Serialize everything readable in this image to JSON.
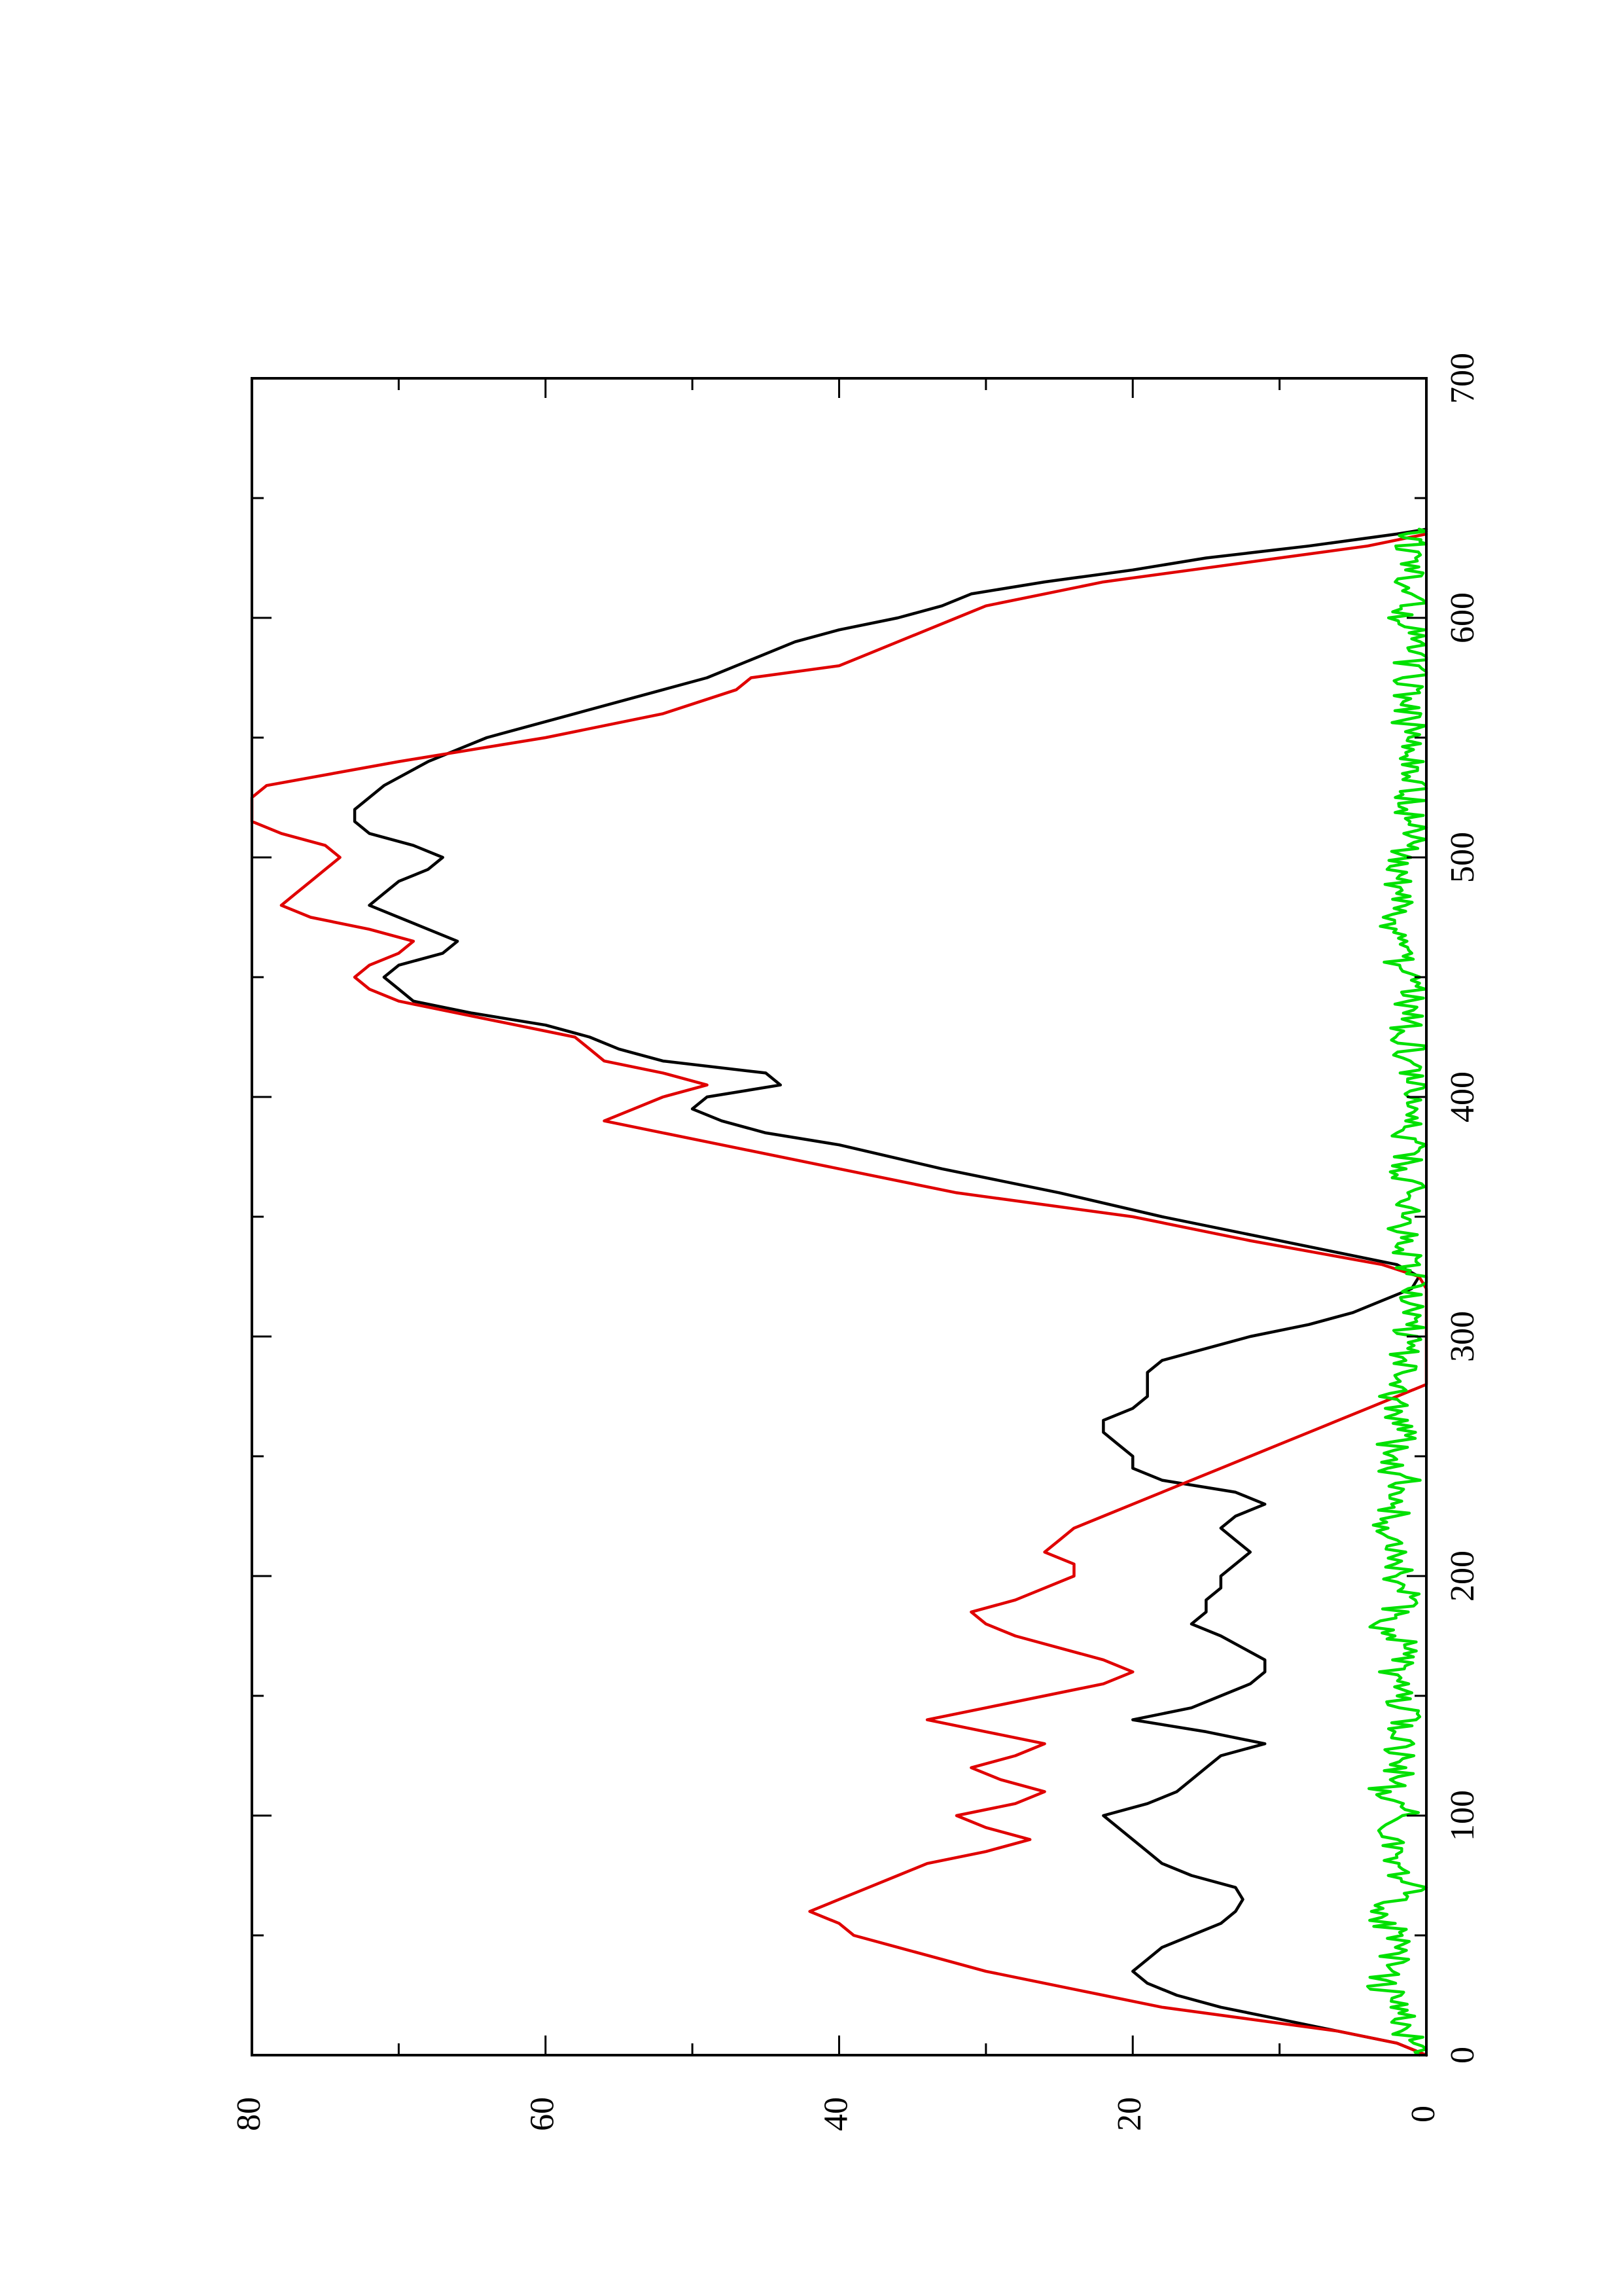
{
  "chart_data": {
    "type": "line",
    "orientation": "rotated-90-ccw",
    "title": "",
    "xlabel": "",
    "ylabel": "",
    "xlim": [
      0,
      700
    ],
    "ylim": [
      0,
      80
    ],
    "x_ticks": [
      0,
      100,
      200,
      300,
      400,
      500,
      600,
      700
    ],
    "y_ticks": [
      0,
      20,
      40,
      60,
      80
    ],
    "grid": false,
    "legend": "none",
    "series": [
      {
        "color": "#000000",
        "points": [
          [
            0,
            0
          ],
          [
            5,
            2
          ],
          [
            10,
            6
          ],
          [
            15,
            10
          ],
          [
            20,
            14
          ],
          [
            25,
            17
          ],
          [
            30,
            19
          ],
          [
            35,
            20
          ],
          [
            40,
            19
          ],
          [
            45,
            18
          ],
          [
            50,
            16
          ],
          [
            55,
            14
          ],
          [
            60,
            13
          ],
          [
            65,
            12.5
          ],
          [
            70,
            13
          ],
          [
            75,
            16
          ],
          [
            80,
            18
          ],
          [
            85,
            19
          ],
          [
            90,
            20
          ],
          [
            95,
            21
          ],
          [
            100,
            22
          ],
          [
            105,
            19
          ],
          [
            110,
            17
          ],
          [
            115,
            16
          ],
          [
            120,
            15
          ],
          [
            125,
            14
          ],
          [
            130,
            11
          ],
          [
            135,
            15
          ],
          [
            140,
            20
          ],
          [
            145,
            16
          ],
          [
            150,
            14
          ],
          [
            155,
            12
          ],
          [
            160,
            11
          ],
          [
            165,
            11
          ],
          [
            170,
            12.5
          ],
          [
            175,
            14
          ],
          [
            180,
            16
          ],
          [
            185,
            15
          ],
          [
            190,
            15
          ],
          [
            195,
            14
          ],
          [
            200,
            14
          ],
          [
            205,
            13
          ],
          [
            210,
            12
          ],
          [
            215,
            13
          ],
          [
            220,
            14
          ],
          [
            225,
            13
          ],
          [
            230,
            11
          ],
          [
            235,
            13
          ],
          [
            240,
            18
          ],
          [
            245,
            20
          ],
          [
            250,
            20
          ],
          [
            255,
            21
          ],
          [
            260,
            22
          ],
          [
            265,
            22
          ],
          [
            270,
            20
          ],
          [
            275,
            19
          ],
          [
            280,
            19
          ],
          [
            285,
            19
          ],
          [
            290,
            18
          ],
          [
            295,
            15
          ],
          [
            300,
            12
          ],
          [
            305,
            8
          ],
          [
            310,
            5
          ],
          [
            315,
            3
          ],
          [
            320,
            1
          ],
          [
            325,
            0.5
          ],
          [
            330,
            2
          ],
          [
            340,
            10
          ],
          [
            350,
            18
          ],
          [
            360,
            25
          ],
          [
            370,
            33
          ],
          [
            380,
            40
          ],
          [
            385,
            45
          ],
          [
            390,
            48
          ],
          [
            395,
            50
          ],
          [
            400,
            49
          ],
          [
            405,
            44
          ],
          [
            410,
            45
          ],
          [
            415,
            52
          ],
          [
            420,
            55
          ],
          [
            425,
            57
          ],
          [
            430,
            60
          ],
          [
            435,
            65
          ],
          [
            440,
            69
          ],
          [
            445,
            70
          ],
          [
            450,
            71
          ],
          [
            455,
            70
          ],
          [
            460,
            67
          ],
          [
            465,
            66
          ],
          [
            470,
            68
          ],
          [
            475,
            70
          ],
          [
            480,
            72
          ],
          [
            485,
            71
          ],
          [
            490,
            70
          ],
          [
            495,
            68
          ],
          [
            500,
            67
          ],
          [
            505,
            69
          ],
          [
            510,
            72
          ],
          [
            515,
            73
          ],
          [
            520,
            73
          ],
          [
            525,
            72
          ],
          [
            530,
            71
          ],
          [
            540,
            68
          ],
          [
            550,
            64
          ],
          [
            560,
            58
          ],
          [
            570,
            52
          ],
          [
            575,
            49
          ],
          [
            580,
            47
          ],
          [
            585,
            45
          ],
          [
            590,
            43
          ],
          [
            595,
            40
          ],
          [
            600,
            36
          ],
          [
            605,
            33
          ],
          [
            610,
            31
          ],
          [
            615,
            26
          ],
          [
            620,
            20
          ],
          [
            625,
            15
          ],
          [
            630,
            8
          ],
          [
            635,
            2
          ],
          [
            637,
            0
          ]
        ]
      },
      {
        "color": "#e00000",
        "points": [
          [
            0,
            0
          ],
          [
            5,
            2
          ],
          [
            10,
            6
          ],
          [
            15,
            12
          ],
          [
            20,
            18
          ],
          [
            25,
            22
          ],
          [
            30,
            26
          ],
          [
            35,
            30
          ],
          [
            40,
            33
          ],
          [
            45,
            36
          ],
          [
            50,
            39
          ],
          [
            55,
            40
          ],
          [
            60,
            42
          ],
          [
            65,
            40
          ],
          [
            70,
            38
          ],
          [
            75,
            36
          ],
          [
            80,
            34
          ],
          [
            85,
            30
          ],
          [
            90,
            27
          ],
          [
            95,
            30
          ],
          [
            100,
            32
          ],
          [
            105,
            28
          ],
          [
            110,
            26
          ],
          [
            115,
            29
          ],
          [
            120,
            31
          ],
          [
            125,
            28
          ],
          [
            130,
            26
          ],
          [
            135,
            30
          ],
          [
            140,
            34
          ],
          [
            145,
            30
          ],
          [
            150,
            26
          ],
          [
            155,
            22
          ],
          [
            160,
            20
          ],
          [
            165,
            22
          ],
          [
            170,
            25
          ],
          [
            175,
            28
          ],
          [
            180,
            30
          ],
          [
            185,
            31
          ],
          [
            190,
            28
          ],
          [
            195,
            26
          ],
          [
            200,
            24
          ],
          [
            205,
            24
          ],
          [
            210,
            26
          ],
          [
            215,
            25
          ],
          [
            220,
            24
          ],
          [
            225,
            22
          ],
          [
            230,
            20
          ],
          [
            235,
            18
          ],
          [
            240,
            16
          ],
          [
            245,
            14
          ],
          [
            250,
            12
          ],
          [
            255,
            10
          ],
          [
            260,
            8
          ],
          [
            265,
            6
          ],
          [
            270,
            4
          ],
          [
            275,
            2
          ],
          [
            280,
            0
          ],
          [
            285,
            0
          ],
          [
            320,
            0
          ],
          [
            325,
            0.5
          ],
          [
            330,
            3
          ],
          [
            340,
            12
          ],
          [
            350,
            20
          ],
          [
            360,
            32
          ],
          [
            370,
            40
          ],
          [
            380,
            48
          ],
          [
            385,
            52
          ],
          [
            390,
            56
          ],
          [
            395,
            54
          ],
          [
            400,
            52
          ],
          [
            405,
            49
          ],
          [
            410,
            52
          ],
          [
            415,
            56
          ],
          [
            420,
            57
          ],
          [
            425,
            58
          ],
          [
            430,
            62
          ],
          [
            435,
            66
          ],
          [
            440,
            70
          ],
          [
            445,
            72
          ],
          [
            450,
            73
          ],
          [
            455,
            72
          ],
          [
            460,
            70
          ],
          [
            465,
            69
          ],
          [
            470,
            72
          ],
          [
            475,
            76
          ],
          [
            480,
            78
          ],
          [
            485,
            77
          ],
          [
            490,
            76
          ],
          [
            495,
            75
          ],
          [
            500,
            74
          ],
          [
            505,
            75
          ],
          [
            510,
            78
          ],
          [
            515,
            80
          ],
          [
            520,
            80
          ],
          [
            525,
            80
          ],
          [
            530,
            79
          ],
          [
            540,
            70
          ],
          [
            550,
            60
          ],
          [
            560,
            52
          ],
          [
            570,
            47
          ],
          [
            575,
            46
          ],
          [
            580,
            40
          ],
          [
            585,
            38
          ],
          [
            590,
            36
          ],
          [
            595,
            34
          ],
          [
            600,
            32
          ],
          [
            605,
            30
          ],
          [
            610,
            26
          ],
          [
            615,
            22
          ],
          [
            620,
            16
          ],
          [
            625,
            10
          ],
          [
            630,
            4
          ],
          [
            635,
            0
          ]
        ]
      },
      {
        "color": "#00e000",
        "noise_amplitude": 1.2,
        "points": [
          [
            0,
            0.5
          ],
          [
            10,
            1.5
          ],
          [
            20,
            2
          ],
          [
            30,
            3
          ],
          [
            40,
            2
          ],
          [
            50,
            2
          ],
          [
            60,
            3.5
          ],
          [
            70,
            1
          ],
          [
            80,
            2
          ],
          [
            90,
            2.5
          ],
          [
            100,
            1.5
          ],
          [
            110,
            3
          ],
          [
            120,
            1.5
          ],
          [
            130,
            2
          ],
          [
            140,
            1.5
          ],
          [
            150,
            2
          ],
          [
            160,
            2.5
          ],
          [
            170,
            1.5
          ],
          [
            180,
            3
          ],
          [
            190,
            1.5
          ],
          [
            200,
            2
          ],
          [
            210,
            1.5
          ],
          [
            220,
            2.5
          ],
          [
            230,
            2
          ],
          [
            240,
            1.5
          ],
          [
            250,
            3
          ],
          [
            260,
            1.5
          ],
          [
            270,
            2
          ],
          [
            280,
            2.5
          ],
          [
            290,
            1.5
          ],
          [
            300,
            1.5
          ],
          [
            310,
            1
          ],
          [
            320,
            0.5
          ],
          [
            330,
            1
          ],
          [
            340,
            1.5
          ],
          [
            350,
            1.5
          ],
          [
            360,
            1
          ],
          [
            370,
            1.5
          ],
          [
            380,
            1
          ],
          [
            390,
            1.5
          ],
          [
            400,
            1
          ],
          [
            410,
            1.5
          ],
          [
            420,
            1
          ],
          [
            430,
            1.5
          ],
          [
            440,
            1
          ],
          [
            450,
            1.5
          ],
          [
            460,
            2
          ],
          [
            470,
            2.5
          ],
          [
            480,
            1.5
          ],
          [
            490,
            2
          ],
          [
            500,
            2
          ],
          [
            510,
            1
          ],
          [
            520,
            1.5
          ],
          [
            530,
            0.5
          ],
          [
            540,
            1
          ],
          [
            550,
            1.5
          ],
          [
            560,
            1
          ],
          [
            570,
            1.5
          ],
          [
            580,
            1
          ],
          [
            590,
            1
          ],
          [
            600,
            1.5
          ],
          [
            610,
            1
          ],
          [
            620,
            1
          ],
          [
            630,
            1
          ],
          [
            637,
            0.5
          ]
        ]
      }
    ]
  }
}
